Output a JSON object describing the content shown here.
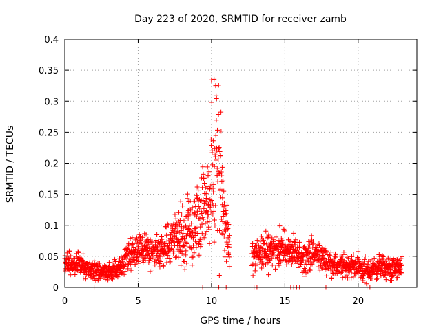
{
  "chart_data": {
    "type": "scatter",
    "title": "Day 223 of 2020, SRMTID for receiver zamb",
    "xlabel": "GPS time / hours",
    "ylabel": "SRMTID / TECUs",
    "xlim": [
      0,
      24
    ],
    "ylim": [
      0,
      0.4
    ],
    "xticks": [
      0,
      5,
      10,
      15,
      20
    ],
    "xtick_labels": [
      "0",
      "5",
      "10",
      "15",
      "20"
    ],
    "yticks": [
      0,
      0.05,
      0.1,
      0.15,
      0.2,
      0.25,
      0.3,
      0.35,
      0.4
    ],
    "ytick_labels": [
      "0",
      "0.05",
      "0.1",
      "0.15",
      "0.2",
      "0.25",
      "0.3",
      "0.35",
      "0.4"
    ],
    "grid": true,
    "marker": "+",
    "color": "#ff0000",
    "data_gaps_hours": [
      [
        11.25,
        12.75
      ]
    ],
    "envelope": {
      "x": [
        0,
        0.5,
        1,
        1.5,
        2,
        2.5,
        3,
        3.5,
        4,
        4.5,
        5,
        5.5,
        6,
        6.5,
        7,
        7.5,
        8,
        8.5,
        9,
        9.5,
        10,
        10.3,
        10.6,
        10.8,
        11,
        11.2,
        13,
        13.5,
        14,
        14.5,
        15,
        15.5,
        16,
        16.5,
        17,
        17.5,
        18,
        18.5,
        19,
        19.5,
        20,
        20.5,
        21,
        21.5,
        22,
        22.5,
        23
      ],
      "center": [
        0.035,
        0.04,
        0.035,
        0.03,
        0.028,
        0.025,
        0.025,
        0.028,
        0.04,
        0.055,
        0.065,
        0.06,
        0.055,
        0.06,
        0.07,
        0.08,
        0.085,
        0.09,
        0.1,
        0.12,
        0.14,
        0.18,
        0.2,
        0.12,
        0.09,
        0.07,
        0.05,
        0.055,
        0.06,
        0.065,
        0.06,
        0.055,
        0.05,
        0.05,
        0.055,
        0.05,
        0.04,
        0.035,
        0.035,
        0.035,
        0.035,
        0.025,
        0.03,
        0.035,
        0.03,
        0.03,
        0.03
      ],
      "spread": [
        0.015,
        0.015,
        0.015,
        0.013,
        0.012,
        0.012,
        0.012,
        0.013,
        0.015,
        0.02,
        0.025,
        0.025,
        0.02,
        0.022,
        0.025,
        0.03,
        0.04,
        0.045,
        0.05,
        0.055,
        0.07,
        0.1,
        0.12,
        0.06,
        0.035,
        0.03,
        0.02,
        0.02,
        0.025,
        0.025,
        0.02,
        0.02,
        0.02,
        0.02,
        0.02,
        0.018,
        0.015,
        0.015,
        0.015,
        0.015,
        0.015,
        0.018,
        0.015,
        0.015,
        0.015,
        0.015,
        0.015
      ]
    },
    "zero_value_times": [
      2.0,
      9.4,
      10.5,
      11.0,
      12.9,
      13.1,
      15.4,
      15.6,
      15.8,
      16.0,
      17.8,
      20.6,
      20.8
    ]
  }
}
